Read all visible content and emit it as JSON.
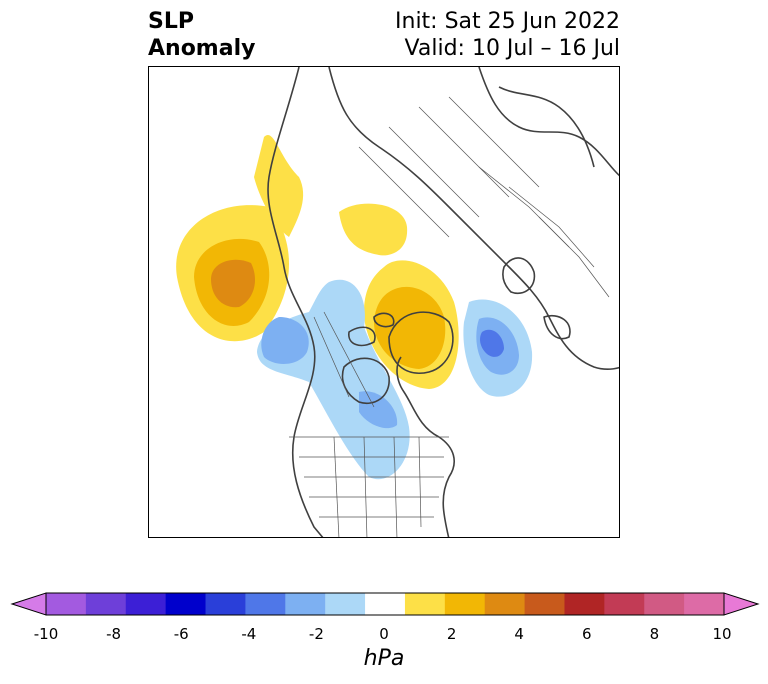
{
  "title": {
    "left_line1": "SLP",
    "left_line2": "Anomaly",
    "init": "Init: Sat 25 Jun 2022",
    "valid": "Valid: 10 Jul – 16 Jul"
  },
  "colorbar": {
    "unit": "hPa",
    "ticks": [
      "-10",
      "-8",
      "-6",
      "-4",
      "-2",
      "0",
      "2",
      "4",
      "6",
      "8",
      "10"
    ],
    "colors": [
      "#d57be8",
      "#a35ae0",
      "#6e3fd9",
      "#3c1fd6",
      "#0000cc",
      "#2a3fd9",
      "#4f77e8",
      "#7db0f2",
      "#acd8f7",
      "#ffffff",
      "#fde047",
      "#f2b705",
      "#de8a12",
      "#c85a1c",
      "#b02525",
      "#c23b55",
      "#d15a84",
      "#dd6ba6",
      "#e879d6"
    ]
  }
}
